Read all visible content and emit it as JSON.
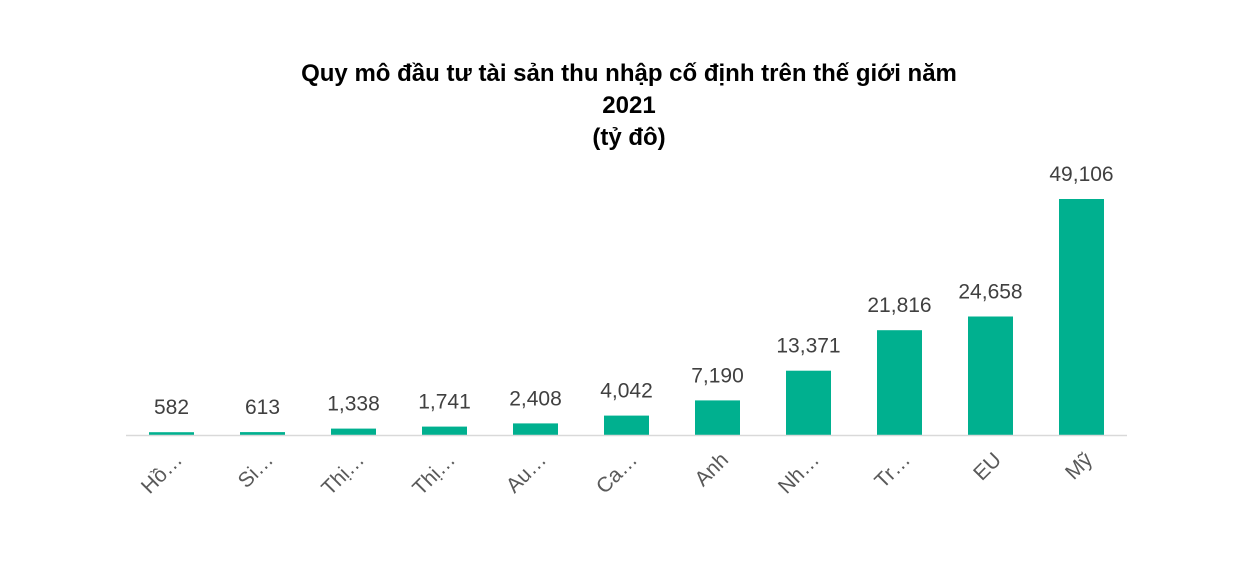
{
  "chart_data": {
    "type": "bar",
    "title_lines": [
      "Quy mô đầu tư tài sản thu nhập cố định trên thế giới năm",
      "2021",
      "(tỷ đô)"
    ],
    "categories": [
      "Hồ…",
      "Si…",
      "Thị…",
      "Thị…",
      "Au…",
      "Ca…",
      "Anh",
      "Nh…",
      "Tr…",
      "EU",
      "Mỹ"
    ],
    "values": [
      582,
      613,
      1338,
      1741,
      2408,
      4042,
      7190,
      13371,
      21816,
      24658,
      49106
    ],
    "value_labels": [
      "582",
      "613",
      "1,338",
      "1,741",
      "2,408",
      "4,042",
      "7,190",
      "13,371",
      "21,816",
      "24,658",
      "49,106"
    ],
    "ylim": [
      0,
      49106
    ],
    "grid": false,
    "legend": "none",
    "bar_color": "#00B08F",
    "axis_color": "#D9D9D9"
  }
}
